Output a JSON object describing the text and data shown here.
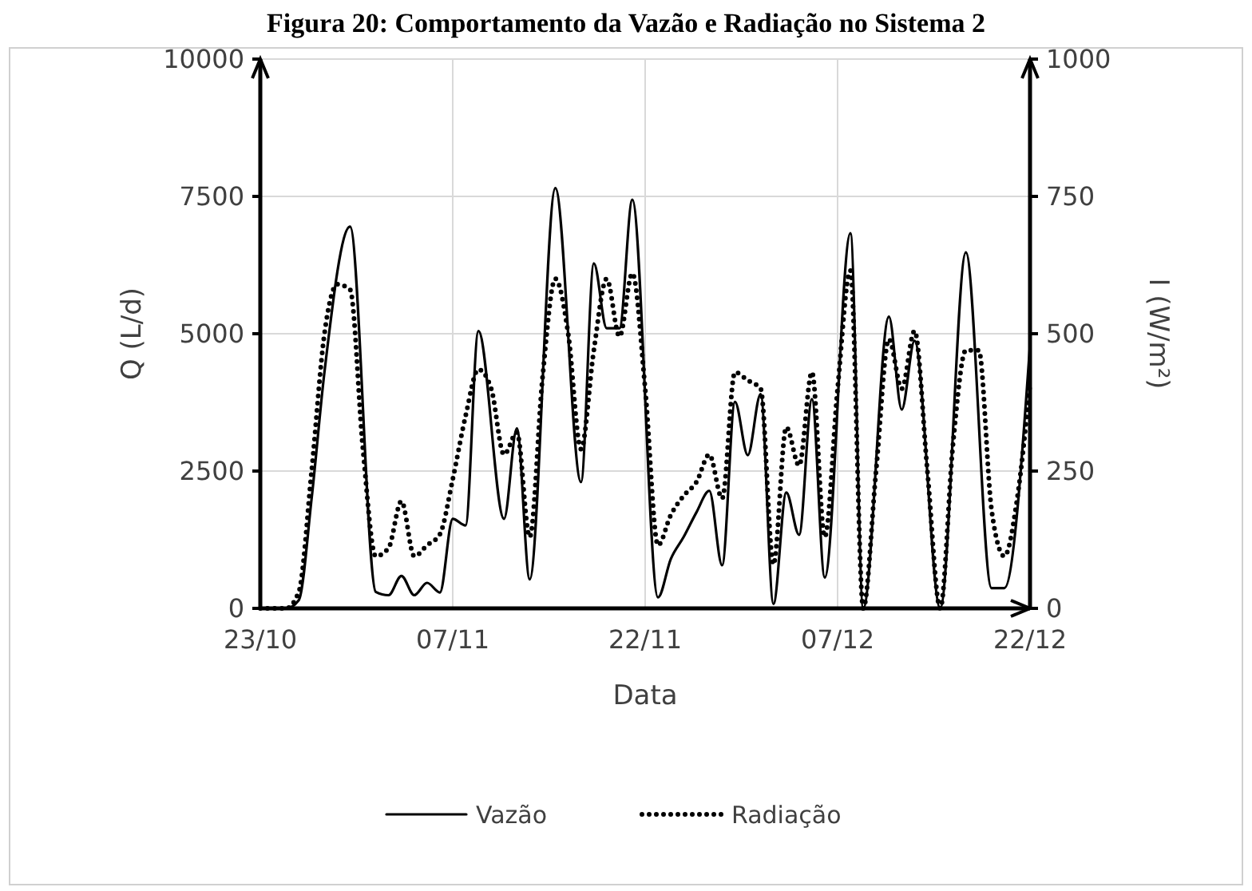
{
  "chart_data": {
    "type": "line",
    "title": "Figura 20: Comportamento da Vazão e Radiação no Sistema 2",
    "xlabel": "Data",
    "ylabel": "Q (L/d)",
    "y2label": "I (W/m²)",
    "xlim": [
      "--10-23",
      "--12-22"
    ],
    "xticks": [
      {
        "value": "--10-23",
        "label": "23/10"
      },
      {
        "value": "--11-07",
        "label": "07/11"
      },
      {
        "value": "--11-22",
        "label": "22/11"
      },
      {
        "value": "--12-07",
        "label": "07/12"
      },
      {
        "value": "--12-22",
        "label": "22/12"
      }
    ],
    "ylim": [
      0,
      10000
    ],
    "yticks": [
      0,
      2500,
      5000,
      7500,
      10000
    ],
    "y2lim": [
      0,
      1000
    ],
    "y2ticks": [
      0,
      250,
      500,
      750,
      1000
    ],
    "grid": true,
    "legend": "bottom",
    "series": [
      {
        "name": "Vazão",
        "color": "#000000",
        "line_style": "solid",
        "x": [
          "--10-23",
          "--10-25",
          "--10-26",
          "--10-27",
          "--10-28",
          "--10-30",
          "--11-01",
          "--11-02",
          "--11-03",
          "--11-04",
          "--11-05",
          "--11-06",
          "--11-07",
          "--11-08",
          "--11-09",
          "--11-11",
          "--11-12",
          "--11-13",
          "--11-15",
          "--11-17",
          "--11-18",
          "--11-19",
          "--11-20",
          "--11-21",
          "--11-23",
          "--11-24",
          "--11-25",
          "--11-26",
          "--11-27",
          "--11-28",
          "--11-29",
          "--11-30",
          "--12-01",
          "--12-02",
          "--12-03",
          "--12-04",
          "--12-05",
          "--12-06",
          "--12-08",
          "--12-09",
          "--12-11",
          "--12-12",
          "--12-13",
          "--12-15",
          "--12-17",
          "--12-19",
          "--12-20",
          "--12-22"
        ],
        "values": [
          0,
          0,
          150,
          2000,
          4300,
          6950,
          300,
          240,
          590,
          240,
          465,
          290,
          1630,
          1510,
          5050,
          1630,
          3275,
          530,
          7650,
          2300,
          6280,
          5100,
          5100,
          7440,
          200,
          900,
          1300,
          1750,
          2140,
          785,
          3760,
          2790,
          3900,
          80,
          2110,
          1340,
          3810,
          560,
          6830,
          0,
          5310,
          3620,
          4870,
          0,
          6480,
          370,
          370,
          4800
        ]
      },
      {
        "name": "Radiação",
        "color": "#000000",
        "line_style": "dotted",
        "axis": "y2",
        "x": [
          "--10-23",
          "--10-25",
          "--10-26",
          "--10-27",
          "--10-28",
          "--10-29",
          "--10-30",
          "--10-31",
          "--11-01",
          "--11-02",
          "--11-03",
          "--11-04",
          "--11-05",
          "--11-06",
          "--11-07",
          "--11-08",
          "--11-09",
          "--11-10",
          "--11-11",
          "--11-12",
          "--11-13",
          "--11-14",
          "--11-15",
          "--11-16",
          "--11-17",
          "--11-18",
          "--11-19",
          "--11-20",
          "--11-21",
          "--11-22",
          "--11-23",
          "--11-24",
          "--11-25",
          "--11-26",
          "--11-27",
          "--11-28",
          "--11-29",
          "--11-30",
          "--12-01",
          "--12-02",
          "--12-03",
          "--12-04",
          "--12-05",
          "--12-06",
          "--12-07",
          "--12-08",
          "--12-09",
          "--12-10",
          "--12-11",
          "--12-12",
          "--12-13",
          "--12-14",
          "--12-15",
          "--12-16",
          "--12-17",
          "--12-18",
          "--12-19",
          "--12-20",
          "--12-21",
          "--12-22"
        ],
        "values": [
          0,
          0,
          30,
          250,
          500,
          590,
          580,
          290,
          95,
          110,
          195,
          95,
          115,
          135,
          235,
          350,
          435,
          400,
          280,
          320,
          130,
          420,
          600,
          500,
          290,
          470,
          600,
          495,
          610,
          400,
          115,
          170,
          205,
          230,
          280,
          200,
          430,
          415,
          400,
          80,
          330,
          260,
          430,
          130,
          400,
          615,
          0,
          250,
          490,
          400,
          505,
          250,
          0,
          300,
          470,
          470,
          180,
          95,
          200,
          410
        ]
      }
    ]
  }
}
